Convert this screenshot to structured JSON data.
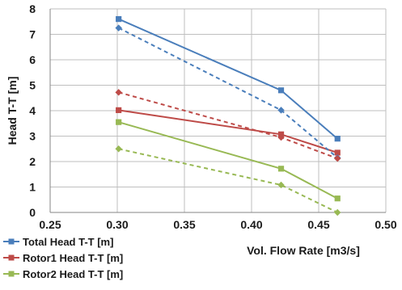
{
  "chart_data": {
    "type": "line",
    "xlabel": "Vol. Flow Rate [m3/s]",
    "ylabel": "Head T-T [m]",
    "xlim": [
      0.25,
      0.5
    ],
    "ylim": [
      0,
      8
    ],
    "x_ticks": [
      "0.25",
      "0.30",
      "0.35",
      "0.40",
      "0.45",
      "0.50"
    ],
    "y_ticks": [
      "0",
      "1",
      "2",
      "3",
      "4",
      "5",
      "6",
      "7",
      "8"
    ],
    "grid": true,
    "legend_position": "bottom-left",
    "series": [
      {
        "name": "Total Head T-T [m]",
        "color": "#4a7ebb",
        "marker": "square",
        "dash": "solid",
        "x": [
          0.301,
          0.422,
          0.464
        ],
        "y": [
          7.6,
          4.8,
          2.9
        ]
      },
      {
        "name": "Rotor1 Head T-T [m]",
        "color": "#be4b48",
        "marker": "square",
        "dash": "solid",
        "x": [
          0.301,
          0.422,
          0.464
        ],
        "y": [
          4.02,
          3.07,
          2.35
        ]
      },
      {
        "name": "Rotor2 Head T-T [m]",
        "color": "#98b954",
        "marker": "square",
        "dash": "solid",
        "x": [
          0.301,
          0.422,
          0.464
        ],
        "y": [
          3.55,
          1.72,
          0.55
        ]
      },
      {
        "color": "#4a7ebb",
        "marker": "diamond",
        "dash": "dashed",
        "x": [
          0.301,
          0.422,
          0.464
        ],
        "y": [
          7.25,
          4.02,
          2.15
        ]
      },
      {
        "color": "#be4b48",
        "marker": "diamond",
        "dash": "dashed",
        "x": [
          0.301,
          0.422,
          0.464
        ],
        "y": [
          4.72,
          2.95,
          2.12
        ]
      },
      {
        "color": "#98b954",
        "marker": "diamond",
        "dash": "dashed",
        "x": [
          0.301,
          0.422,
          0.464
        ],
        "y": [
          2.5,
          1.08,
          0.0
        ]
      }
    ]
  }
}
